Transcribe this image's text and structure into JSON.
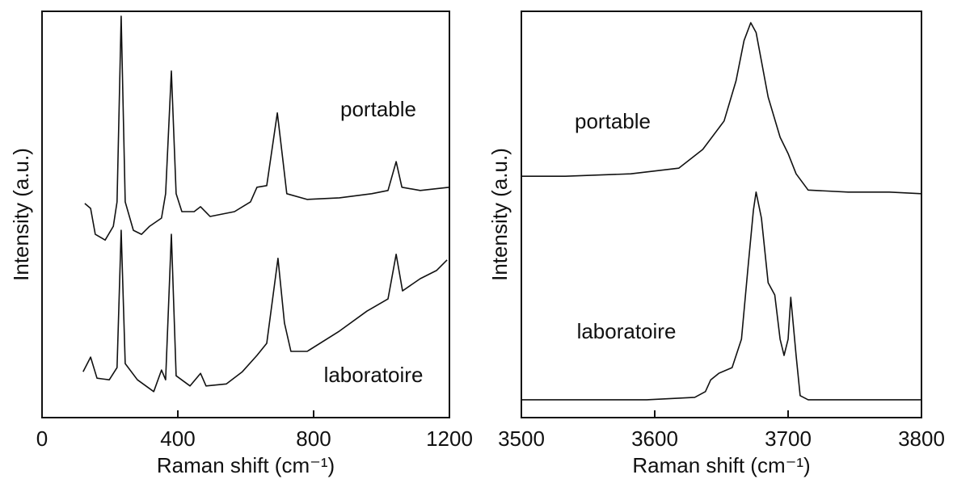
{
  "chart_data": [
    {
      "type": "line",
      "xlabel": "Raman shift (cm⁻¹)",
      "ylabel": "Intensity (a.u.)",
      "xlim": [
        0,
        1200
      ],
      "xticks": [
        0,
        400,
        800,
        1200
      ],
      "ylim": [
        0,
        100
      ],
      "series": [
        {
          "name": "portable",
          "color": "#111111",
          "x": [
            126,
            143,
            157,
            186,
            210,
            221,
            233,
            245,
            269,
            293,
            317,
            352,
            364,
            381,
            395,
            412,
            448,
            467,
            495,
            567,
            614,
            633,
            662,
            693,
            710,
            721,
            781,
            876,
            971,
            1019,
            1043,
            1060,
            1114,
            1200
          ],
          "values": [
            52.7,
            51.5,
            45.1,
            43.7,
            47.1,
            53.1,
            98.8,
            53.1,
            46.1,
            45.1,
            47.1,
            49.1,
            55.1,
            85.3,
            55.1,
            50.7,
            50.7,
            51.9,
            49.5,
            50.7,
            53.1,
            56.7,
            57.1,
            75,
            63,
            55.1,
            53.7,
            54.1,
            55.1,
            55.9,
            63,
            56.7,
            55.9,
            56.7
          ]
        },
        {
          "name": "laboratoire",
          "color": "#111111",
          "x": [
            121,
            143,
            162,
            198,
            221,
            233,
            245,
            281,
            329,
            352,
            364,
            381,
            395,
            436,
            467,
            483,
            543,
            590,
            633,
            662,
            695,
            714,
            733,
            781,
            876,
            957,
            1019,
            1043,
            1062,
            1114,
            1162,
            1193
          ],
          "values": [
            11.3,
            14.9,
            9.7,
            9.3,
            12.3,
            46.1,
            13.3,
            9.3,
            6.4,
            11.7,
            9.3,
            45.1,
            10.3,
            7.8,
            10.9,
            7.8,
            8.3,
            11.3,
            15.3,
            18.3,
            39.2,
            23.3,
            16.3,
            16.3,
            21.3,
            26.2,
            29.2,
            40.2,
            31.2,
            34.2,
            36.2,
            38.8
          ]
        }
      ]
    },
    {
      "type": "line",
      "xlabel": "Raman shift (cm⁻¹)",
      "ylabel": "Intensity (a.u.)",
      "xlim": [
        3500,
        3800
      ],
      "xticks": [
        3500,
        3600,
        3700,
        3800
      ],
      "ylim": [
        0,
        100
      ],
      "series": [
        {
          "name": "portable",
          "color": "#111111",
          "x": [
            3500,
            3533,
            3582,
            3618,
            3636,
            3652,
            3661,
            3667,
            3672,
            3676,
            3685,
            3694,
            3700,
            3706,
            3715,
            3745,
            3776,
            3800
          ],
          "values": [
            59.4,
            59.4,
            60,
            61.4,
            66,
            73,
            82.9,
            92.8,
            97.2,
            94.8,
            78.9,
            69,
            65,
            60,
            56,
            55.5,
            55.5,
            55.1
          ]
        },
        {
          "name": "laboratoire",
          "color": "#111111",
          "x": [
            3500,
            3594,
            3630,
            3638,
            3642,
            3648,
            3658,
            3665,
            3670,
            3674,
            3676,
            3680,
            3685,
            3690,
            3694,
            3697,
            3700,
            3702,
            3706,
            3709,
            3715,
            3800
          ],
          "values": [
            4.4,
            4.4,
            5,
            6.4,
            9.3,
            10.9,
            12.3,
            19.3,
            37.2,
            51.1,
            55.5,
            49.1,
            33.2,
            30.2,
            19.3,
            15.3,
            19.3,
            29.6,
            15.3,
            5.4,
            4.4,
            4.4
          ]
        }
      ]
    }
  ]
}
